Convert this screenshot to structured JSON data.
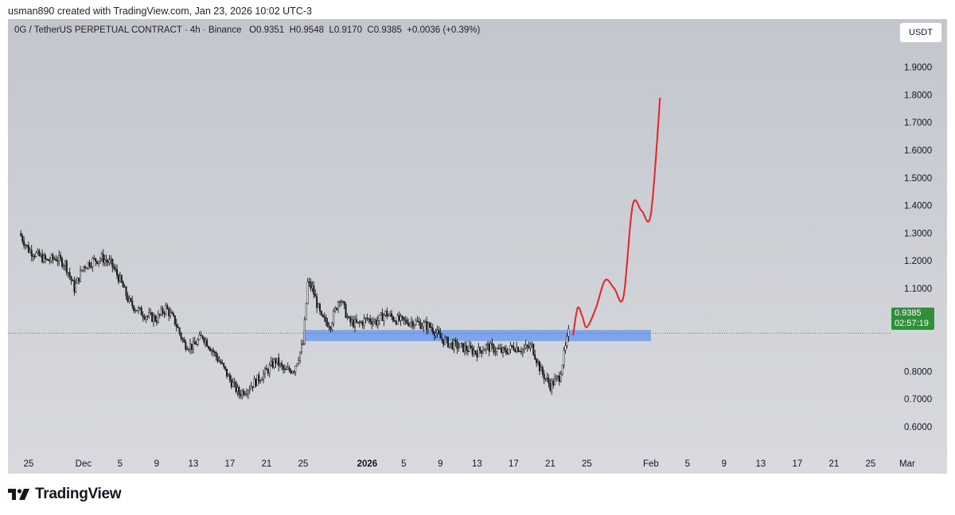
{
  "credit": "usman890 created with TradingView.com, Jan 23, 2026 10:02 UTC-3",
  "header": {
    "symbol": "0G / TetherUS PERPETUAL CONTRACT · 4h · Binance",
    "open": "O0.9351",
    "high": "H0.9548",
    "low": "L0.9170",
    "close": "C0.9385",
    "change": "+0.0036 (+0.39%)"
  },
  "currency_button": "USDT",
  "last_price": {
    "value": "0.9385",
    "countdown": "02:57:19",
    "color": "#2f8f3a"
  },
  "brand": "TradingView",
  "colors": {
    "candles": "#1a1a1a",
    "projection": "#e8232a",
    "zone": "#6f9bf0",
    "price_line": "#6b7280",
    "background": "#cfd2d7"
  },
  "chart_data": {
    "type": "candlestick",
    "timeframe": "4h",
    "ylim": [
      0.55,
      1.97
    ],
    "y_ticks": [
      0.6,
      0.7,
      0.8,
      0.9,
      1.0,
      1.1,
      1.2,
      1.3,
      1.4,
      1.5,
      1.6,
      1.7,
      1.8,
      1.9
    ],
    "y_tick_labels": [
      "0.6000",
      "0.7000",
      "0.8000",
      "",
      "1.0000",
      "1.1000",
      "1.2000",
      "1.3000",
      "1.4000",
      "1.5000",
      "1.6000",
      "1.7000",
      "1.8000",
      "1.9000"
    ],
    "x_ticks": [
      {
        "date": "2025-11-25",
        "label": "25"
      },
      {
        "date": "2025-12-01",
        "label": "Dec"
      },
      {
        "date": "2025-12-05",
        "label": "5"
      },
      {
        "date": "2025-12-09",
        "label": "9"
      },
      {
        "date": "2025-12-13",
        "label": "13"
      },
      {
        "date": "2025-12-17",
        "label": "17"
      },
      {
        "date": "2025-12-21",
        "label": "21"
      },
      {
        "date": "2025-12-25",
        "label": "25"
      },
      {
        "date": "2026-01-01",
        "label": "2026",
        "bold": true
      },
      {
        "date": "2026-01-05",
        "label": "5"
      },
      {
        "date": "2026-01-09",
        "label": "9"
      },
      {
        "date": "2026-01-13",
        "label": "13"
      },
      {
        "date": "2026-01-17",
        "label": "17"
      },
      {
        "date": "2026-01-21",
        "label": "21"
      },
      {
        "date": "2026-01-25",
        "label": "25"
      },
      {
        "date": "2026-02-01",
        "label": "Feb"
      },
      {
        "date": "2026-02-05",
        "label": "5"
      },
      {
        "date": "2026-02-09",
        "label": "9"
      },
      {
        "date": "2026-02-13",
        "label": "13"
      },
      {
        "date": "2026-02-17",
        "label": "17"
      },
      {
        "date": "2026-02-21",
        "label": "21"
      },
      {
        "date": "2026-02-25",
        "label": "25"
      },
      {
        "date": "2026-03-01",
        "label": "Mar"
      }
    ],
    "price_path": [
      [
        "2025-11-24",
        1.3
      ],
      [
        "2025-11-25",
        1.24
      ],
      [
        "2025-11-26",
        1.22
      ],
      [
        "2025-11-27",
        1.2
      ],
      [
        "2025-11-28",
        1.21
      ],
      [
        "2025-11-29",
        1.19
      ],
      [
        "2025-11-30",
        1.1
      ],
      [
        "2025-12-01",
        1.18
      ],
      [
        "2025-12-02",
        1.2
      ],
      [
        "2025-12-03",
        1.21
      ],
      [
        "2025-12-04",
        1.19
      ],
      [
        "2025-12-05",
        1.13
      ],
      [
        "2025-12-06",
        1.05
      ],
      [
        "2025-12-07",
        1.02
      ],
      [
        "2025-12-08",
        1.0
      ],
      [
        "2025-12-09",
        0.99
      ],
      [
        "2025-12-10",
        1.03
      ],
      [
        "2025-12-11",
        0.98
      ],
      [
        "2025-12-12",
        0.9
      ],
      [
        "2025-12-13",
        0.89
      ],
      [
        "2025-12-14",
        0.93
      ],
      [
        "2025-12-15",
        0.88
      ],
      [
        "2025-12-16",
        0.83
      ],
      [
        "2025-12-17",
        0.77
      ],
      [
        "2025-12-18",
        0.72
      ],
      [
        "2025-12-19",
        0.74
      ],
      [
        "2025-12-20",
        0.77
      ],
      [
        "2025-12-21",
        0.8
      ],
      [
        "2025-12-22",
        0.84
      ],
      [
        "2025-12-23",
        0.8
      ],
      [
        "2025-12-24",
        0.81
      ],
      [
        "2025-12-25",
        0.9
      ],
      [
        "2025-12-25T12:00",
        1.12
      ],
      [
        "2025-12-26",
        1.1
      ],
      [
        "2025-12-27",
        0.99
      ],
      [
        "2025-12-28",
        0.97
      ],
      [
        "2025-12-29",
        1.07
      ],
      [
        "2025-12-30",
        0.98
      ],
      [
        "2025-12-31",
        0.97
      ],
      [
        "2026-01-01",
        0.99
      ],
      [
        "2026-01-02",
        0.98
      ],
      [
        "2026-01-03",
        1.01
      ],
      [
        "2026-01-04",
        0.99
      ],
      [
        "2026-01-05",
        0.98
      ],
      [
        "2026-01-06",
        0.98
      ],
      [
        "2026-01-07",
        0.97
      ],
      [
        "2026-01-08",
        0.96
      ],
      [
        "2026-01-09",
        0.92
      ],
      [
        "2026-01-10",
        0.9
      ],
      [
        "2026-01-11",
        0.89
      ],
      [
        "2026-01-12",
        0.88
      ],
      [
        "2026-01-13",
        0.87
      ],
      [
        "2026-01-14",
        0.89
      ],
      [
        "2026-01-15",
        0.88
      ],
      [
        "2026-01-16",
        0.87
      ],
      [
        "2026-01-17",
        0.89
      ],
      [
        "2026-01-18",
        0.88
      ],
      [
        "2026-01-19",
        0.89
      ],
      [
        "2026-01-20",
        0.8
      ],
      [
        "2026-01-21",
        0.75
      ],
      [
        "2026-01-22",
        0.78
      ],
      [
        "2026-01-23",
        0.9385
      ]
    ],
    "zone": {
      "from": "2025-12-25",
      "to": "2026-02-01",
      "low": 0.91,
      "high": 0.95
    },
    "projection_path": [
      [
        "2026-01-23T12:00",
        0.93
      ],
      [
        "2026-01-24",
        1.03
      ],
      [
        "2026-01-24T12:00",
        1.0
      ],
      [
        "2026-01-25",
        0.96
      ],
      [
        "2026-01-26",
        1.03
      ],
      [
        "2026-01-27",
        1.13
      ],
      [
        "2026-01-28",
        1.1
      ],
      [
        "2026-01-29",
        1.07
      ],
      [
        "2026-01-30",
        1.4
      ],
      [
        "2026-01-31",
        1.38
      ],
      [
        "2026-02-01",
        1.37
      ],
      [
        "2026-02-02",
        1.79
      ]
    ]
  }
}
